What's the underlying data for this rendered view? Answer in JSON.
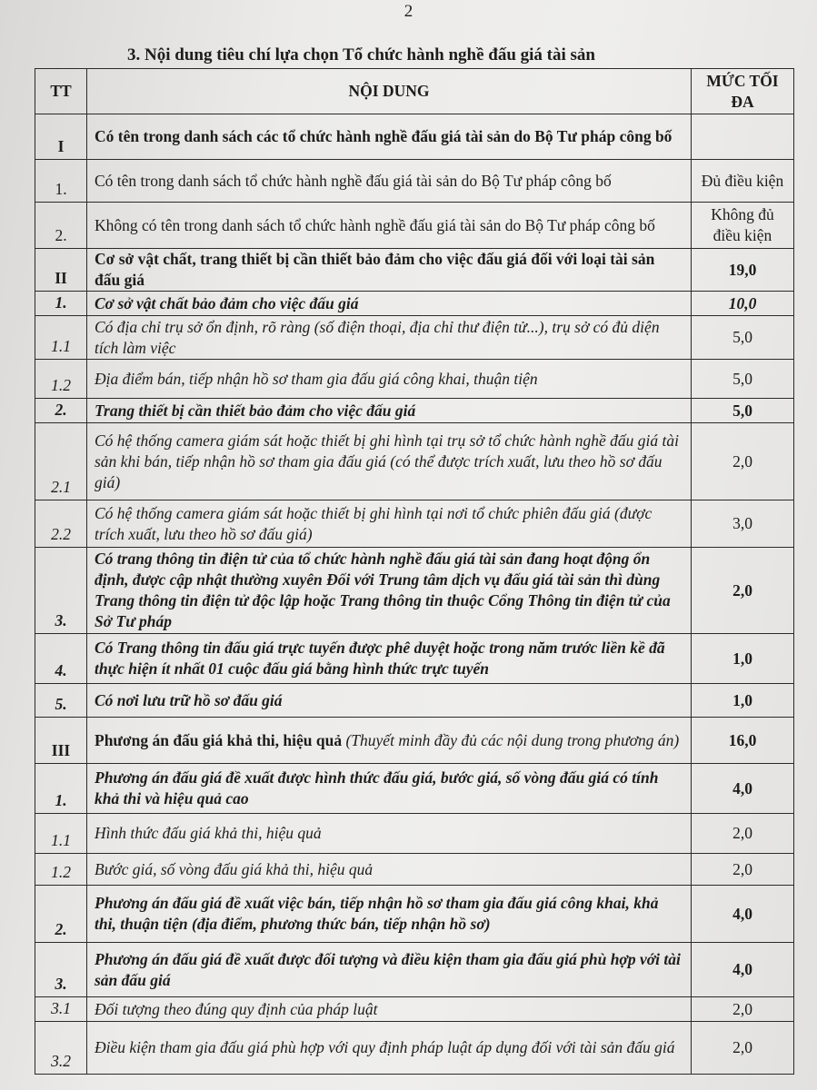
{
  "page_number": "2",
  "title": "3. Nội dung tiêu chí lựa chọn Tổ chức hành nghề đấu giá tài sản",
  "table": {
    "headers": [
      "TT",
      "NỘI DUNG",
      "MỨC TỐI ĐA"
    ],
    "rows": [
      {
        "tt": "I",
        "content": "Có tên trong danh sách các tổ chức hành nghề đấu giá tài sản do Bộ Tư pháp công bố",
        "value": "",
        "style": "b"
      },
      {
        "tt": "1.",
        "content": "Có tên trong danh sách tổ chức hành nghề đấu giá tài sản do Bộ Tư pháp công bố",
        "value": "Đủ điều kiện",
        "style": ""
      },
      {
        "tt": "2.",
        "content": "Không có tên trong danh sách tổ chức hành nghề đấu giá tài sản do Bộ Tư pháp công bố",
        "value": "Không đủ điều kiện",
        "style": ""
      },
      {
        "tt": "II",
        "content": "Cơ sở vật chất, trang thiết bị cần thiết bảo đảm cho việc đấu giá đối với loại tài sản đấu giá",
        "value": "19,0",
        "style": "b"
      },
      {
        "tt": "1.",
        "content": "Cơ sở vật chất bảo đảm cho việc đấu giá",
        "value": "10,0",
        "style": "bi"
      },
      {
        "tt": "1.1",
        "content": "Có địa chỉ trụ sở ổn định, rõ ràng (số điện thoại, địa chỉ thư điện tử...), trụ sở có đủ diện tích làm việc",
        "value": "5,0",
        "style": "i"
      },
      {
        "tt": "1.2",
        "content": "Địa điểm bán, tiếp nhận hồ sơ tham gia đấu giá công khai, thuận tiện",
        "value": "5,0",
        "style": "i"
      },
      {
        "tt": "2.",
        "content": "Trang thiết bị cần thiết bảo đảm cho việc đấu giá",
        "value": "5,0",
        "style": "bi"
      },
      {
        "tt": "2.1",
        "content": "Có hệ thống camera giám sát hoặc thiết bị ghi hình tại trụ sở tổ chức hành nghề đấu giá tài sản khi bán, tiếp nhận hồ sơ tham gia đấu giá (có thể được trích xuất, lưu theo hồ sơ đấu giá)",
        "value": "2,0",
        "style": "i"
      },
      {
        "tt": "2.2",
        "content": "Có hệ thống camera giám sát hoặc thiết bị ghi hình tại nơi tổ chức phiên đấu giá (được trích xuất, lưu theo hồ sơ đấu giá)",
        "value": "3,0",
        "style": "i"
      },
      {
        "tt": "3.",
        "content": "Có trang thông tin điện tử của tổ chức hành nghề đấu giá tài sản đang hoạt động ổn định, được cập nhật thường xuyên Đối với Trung tâm dịch vụ đấu giá tài sản thì dùng Trang thông tin điện tử độc lập hoặc Trang thông tin thuộc Cổng Thông tin điện tử của Sở Tư pháp",
        "value": "2,0",
        "style": "bi"
      },
      {
        "tt": "4.",
        "content": "Có Trang thông tin đấu giá trực tuyến được phê duyệt hoặc trong năm trước liền kề đã thực hiện ít nhất 01 cuộc đấu giá bằng hình thức trực tuyến",
        "value": "1,0",
        "style": "bi"
      },
      {
        "tt": "5.",
        "content": "Có nơi lưu trữ hồ sơ đấu giá",
        "value": "1,0",
        "style": "bi"
      },
      {
        "tt": "III",
        "content": "Phương án đấu giá khả thi, hiệu quả",
        "note": "(Thuyết minh đầy đủ các nội dung trong phương án)",
        "value": "16,0",
        "style": "b"
      },
      {
        "tt": "1.",
        "content": "Phương án đấu giá đề xuất được hình thức đấu giá, bước giá, số vòng đấu giá có tính khả thi và hiệu quả cao",
        "value": "4,0",
        "style": "bi"
      },
      {
        "tt": "1.1",
        "content": "Hình thức đấu giá khả thi, hiệu quả",
        "value": "2,0",
        "style": "i"
      },
      {
        "tt": "1.2",
        "content": "Bước giá, số vòng đấu giá khả thi, hiệu quả",
        "value": "2,0",
        "style": "i"
      },
      {
        "tt": "2.",
        "content": "Phương án đấu giá đề xuất việc bán, tiếp nhận hồ sơ tham gia đấu giá công khai, khả thi, thuận tiện (địa điểm, phương thức bán, tiếp nhận hồ sơ)",
        "value": "4,0",
        "style": "bi"
      },
      {
        "tt": "3.",
        "content": "Phương án đấu giá đề xuất được đối tượng và điều kiện tham gia đấu giá phù hợp với tài sản đấu giá",
        "value": "4,0",
        "style": "bi"
      },
      {
        "tt": "3.1",
        "content": "Đối tượng theo đúng quy định của pháp luật",
        "value": "2,0",
        "style": "i"
      },
      {
        "tt": "3.2",
        "content": "Điều kiện tham gia đấu giá phù hợp với quy định pháp luật áp dụng đối với tài sản đấu giá",
        "value": "2,0",
        "style": "i"
      }
    ]
  }
}
